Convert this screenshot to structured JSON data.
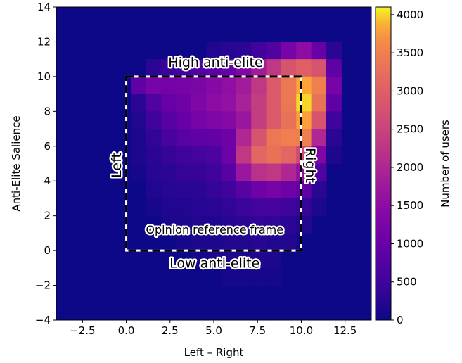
{
  "chart_data": {
    "type": "heatmap",
    "title": "",
    "xlabel": "Left – Right",
    "ylabel": "Anti-Elite Salience",
    "xlim": [
      -4,
      14
    ],
    "ylim": [
      -4,
      14
    ],
    "x_ticks": [
      "−2.5",
      "0.0",
      "2.5",
      "5.0",
      "7.5",
      "10.0",
      "12.5"
    ],
    "y_ticks": [
      "−4",
      "−2",
      "0",
      "2",
      "4",
      "6",
      "8",
      "10",
      "12",
      "14"
    ],
    "x_tick_values": [
      -2.5,
      0,
      2.5,
      5,
      7.5,
      10,
      12.5
    ],
    "y_tick_values": [
      -4,
      -2,
      0,
      2,
      4,
      6,
      8,
      10,
      12,
      14
    ],
    "colorbar": {
      "label": "Number of users",
      "min": 0,
      "max": 4100,
      "ticks": [
        "0",
        "500",
        "1000",
        "1500",
        "2000",
        "2500",
        "3000",
        "3500",
        "4000"
      ],
      "tick_values": [
        0,
        500,
        1000,
        1500,
        2000,
        2500,
        3000,
        3500,
        4000
      ],
      "colormap": "plasma"
    },
    "bins": {
      "x_start": -4,
      "x_step": 0.857,
      "y_start": -4,
      "y_step": 1,
      "rows_from_top": [
        [
          0,
          0,
          0,
          0,
          0,
          0,
          0,
          0,
          0,
          0,
          0,
          0,
          0,
          0,
          0,
          0,
          0,
          0,
          0,
          0,
          0
        ],
        [
          0,
          0,
          0,
          0,
          0,
          0,
          0,
          0,
          0,
          0,
          0,
          0,
          0,
          0,
          0,
          0,
          0,
          0,
          0,
          0,
          0
        ],
        [
          0,
          0,
          0,
          0,
          0,
          0,
          0,
          0,
          0,
          0,
          200,
          250,
          300,
          500,
          700,
          1200,
          1500,
          1000,
          300,
          0,
          0
        ],
        [
          0,
          0,
          0,
          0,
          0,
          0,
          300,
          450,
          500,
          700,
          850,
          1000,
          1300,
          1800,
          2300,
          2800,
          3000,
          2800,
          900,
          0,
          0
        ],
        [
          0,
          0,
          0,
          0,
          0,
          900,
          1200,
          1150,
          1200,
          1250,
          1400,
          1550,
          1800,
          2300,
          2900,
          3400,
          3850,
          3500,
          1200,
          0,
          0
        ],
        [
          0,
          0,
          0,
          0,
          0,
          300,
          700,
          1000,
          1100,
          1300,
          1500,
          1600,
          1900,
          2400,
          2900,
          3400,
          4000,
          3300,
          900,
          0,
          0
        ],
        [
          0,
          0,
          0,
          0,
          0,
          200,
          500,
          800,
          1000,
          1200,
          1300,
          1400,
          1700,
          2400,
          2900,
          3300,
          3800,
          2800,
          500,
          0,
          0
        ],
        [
          0,
          0,
          0,
          0,
          0,
          150,
          350,
          600,
          800,
          900,
          950,
          1100,
          2000,
          2800,
          3400,
          3500,
          3500,
          2000,
          300,
          0,
          0
        ],
        [
          0,
          0,
          0,
          0,
          0,
          150,
          300,
          400,
          500,
          550,
          650,
          1100,
          2300,
          3100,
          3300,
          3100,
          2600,
          1300,
          150,
          0,
          0
        ],
        [
          0,
          0,
          0,
          0,
          0,
          100,
          250,
          300,
          400,
          400,
          500,
          800,
          1700,
          2200,
          2300,
          2000,
          1600,
          700,
          0,
          0,
          0
        ],
        [
          0,
          0,
          0,
          0,
          0,
          0,
          200,
          250,
          300,
          300,
          400,
          500,
          800,
          1100,
          1200,
          1100,
          900,
          300,
          0,
          0,
          0
        ],
        [
          0,
          0,
          0,
          0,
          0,
          0,
          100,
          200,
          200,
          250,
          300,
          350,
          450,
          550,
          600,
          500,
          400,
          150,
          0,
          0,
          0
        ],
        [
          0,
          0,
          0,
          0,
          0,
          0,
          0,
          150,
          150,
          200,
          200,
          250,
          300,
          350,
          350,
          300,
          200,
          0,
          0,
          0,
          0
        ],
        [
          0,
          0,
          0,
          0,
          0,
          0,
          0,
          0,
          100,
          150,
          150,
          200,
          200,
          250,
          200,
          200,
          0,
          0,
          0,
          0,
          0
        ],
        [
          0,
          0,
          0,
          0,
          0,
          0,
          0,
          0,
          0,
          100,
          150,
          150,
          150,
          200,
          150,
          0,
          0,
          0,
          0,
          0,
          0
        ],
        [
          0,
          0,
          0,
          0,
          0,
          0,
          0,
          0,
          0,
          0,
          0,
          100,
          100,
          100,
          100,
          0,
          0,
          0,
          0,
          0,
          0
        ],
        [
          0,
          0,
          0,
          0,
          0,
          0,
          0,
          0,
          0,
          0,
          0,
          0,
          0,
          0,
          0,
          0,
          0,
          0,
          0,
          0,
          0
        ],
        [
          0,
          0,
          0,
          0,
          0,
          0,
          0,
          0,
          0,
          0,
          0,
          0,
          0,
          0,
          0,
          0,
          0,
          0,
          0,
          0,
          0
        ]
      ]
    },
    "frame": {
      "x0": 0,
      "x1": 10,
      "y0": 0,
      "y1": 10
    },
    "annotations": {
      "top": "High anti-elite",
      "bottom": "Low anti-elite",
      "left": "Left",
      "right": "Right",
      "inner": "Opinion reference frame"
    }
  }
}
